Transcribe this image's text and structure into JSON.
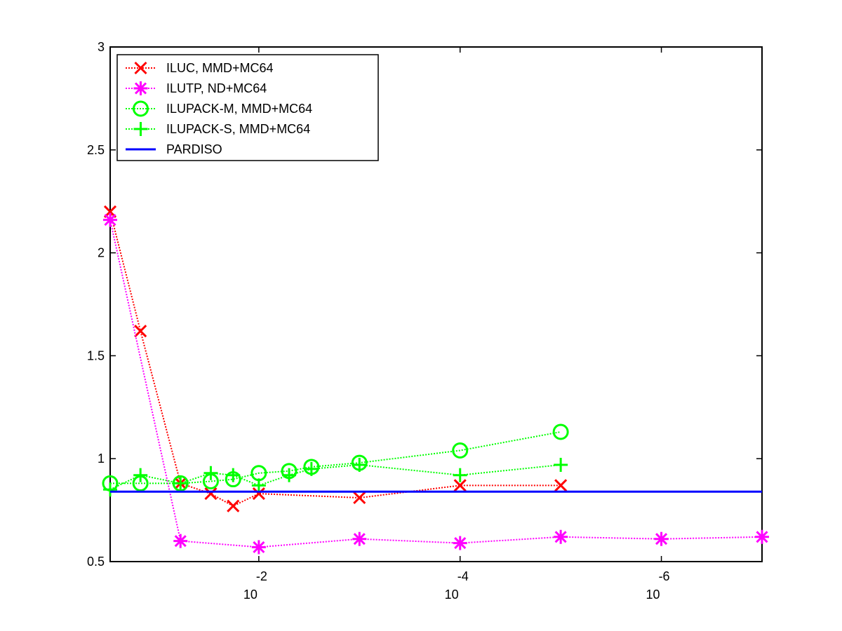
{
  "chart_data": {
    "type": "line",
    "title": "",
    "xlabel": "",
    "ylabel": "",
    "xscale": "log",
    "x_direction": "decreasing",
    "xlim": [
      0.3,
      1e-07
    ],
    "ylim": [
      0.5,
      3
    ],
    "grid": false,
    "legend_position": "top-left",
    "y_ticks": [
      "0.5",
      "1",
      "1.5",
      "2",
      "2.5",
      "3"
    ],
    "x_ticks": [
      {
        "value": 0.01,
        "base": "10",
        "exp": "-2"
      },
      {
        "value": 0.0001,
        "base": "10",
        "exp": "-4"
      },
      {
        "value": 1e-06,
        "base": "10",
        "exp": "-6"
      }
    ],
    "series": [
      {
        "name": "ILUC, MMD+MC64",
        "color": "#ff0000",
        "marker": "x",
        "linestyle": "dotted",
        "x": [
          0.3,
          0.15,
          0.06,
          0.03,
          0.018,
          0.01,
          0.001,
          0.0001,
          1e-05
        ],
        "y": [
          2.2,
          1.62,
          0.88,
          0.83,
          0.77,
          0.83,
          0.81,
          0.87,
          0.87
        ]
      },
      {
        "name": "ILUTP,  ND+MC64",
        "color": "#ff00ff",
        "marker": "asterisk",
        "linestyle": "dotted",
        "x": [
          0.3,
          0.06,
          0.01,
          0.001,
          0.0001,
          1e-05,
          1e-06,
          1e-07
        ],
        "y": [
          2.16,
          0.6,
          0.57,
          0.61,
          0.59,
          0.62,
          0.61,
          0.62
        ]
      },
      {
        "name": "ILUPACK-M, MMD+MC64",
        "color": "#00ff00",
        "marker": "circle",
        "linestyle": "dotted",
        "x": [
          0.3,
          0.15,
          0.06,
          0.03,
          0.018,
          0.01,
          0.005,
          0.003,
          0.001,
          0.0001,
          1e-05
        ],
        "y": [
          0.88,
          0.88,
          0.88,
          0.89,
          0.9,
          0.93,
          0.94,
          0.96,
          0.98,
          1.04,
          1.13
        ]
      },
      {
        "name": "ILUPACK-S, MMD+MC64",
        "color": "#00ff00",
        "marker": "plus",
        "linestyle": "dotted",
        "x": [
          0.3,
          0.15,
          0.06,
          0.03,
          0.018,
          0.01,
          0.005,
          0.003,
          0.001,
          0.0001,
          1e-05
        ],
        "y": [
          0.85,
          0.92,
          0.88,
          0.93,
          0.92,
          0.87,
          0.92,
          0.95,
          0.97,
          0.92,
          0.97
        ]
      },
      {
        "name": "PARDISO",
        "color": "#0000ff",
        "marker": "none",
        "linestyle": "solid",
        "x": [
          0.3,
          1e-07
        ],
        "y": [
          0.84,
          0.84
        ]
      }
    ]
  }
}
